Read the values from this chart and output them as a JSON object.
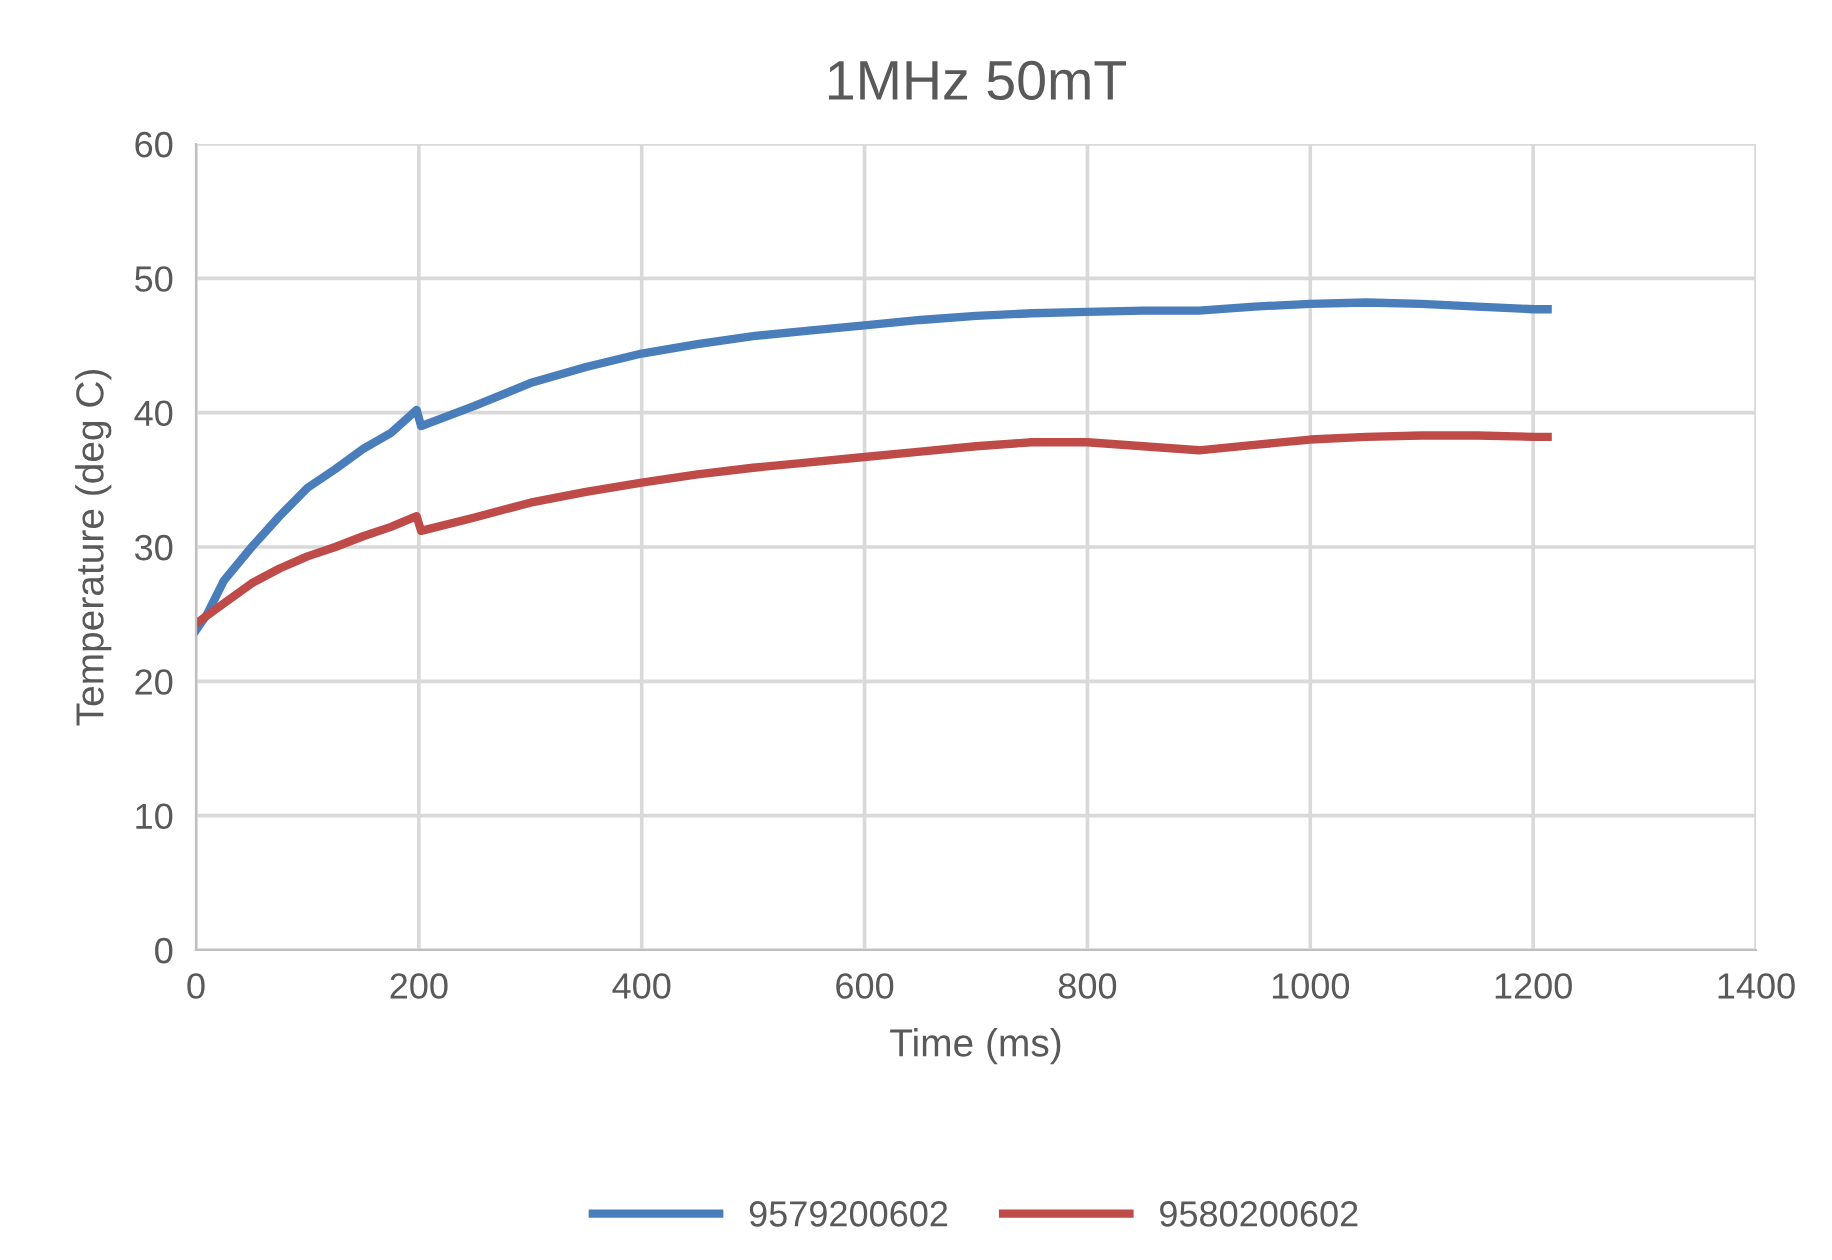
{
  "chart_data": {
    "type": "line",
    "title": "1MHz 50mT",
    "xlabel": "Time (ms)",
    "ylabel": "Temperature (deg C)",
    "xlim": [
      0,
      1400
    ],
    "xticks": [
      0,
      200,
      400,
      600,
      800,
      1000,
      1200,
      1400
    ],
    "ylim": [
      0,
      60
    ],
    "yticks": [
      0,
      10,
      20,
      30,
      40,
      50,
      60
    ],
    "grid": true,
    "legend": "bottom",
    "marker": "none",
    "line_style": "solid",
    "series": [
      {
        "name": "9579200602",
        "color": "#4a7ebb",
        "x": [
          0,
          10,
          25,
          50,
          75,
          100,
          125,
          150,
          175,
          198,
          202,
          250,
          300,
          350,
          400,
          450,
          500,
          550,
          600,
          650,
          700,
          750,
          800,
          850,
          900,
          950,
          1000,
          1050,
          1100,
          1150,
          1200,
          1213
        ],
        "values": [
          23.8,
          25,
          27.5,
          30,
          32.3,
          34.4,
          35.8,
          37.3,
          38.5,
          40.2,
          39,
          40.5,
          42.2,
          43.4,
          44.4,
          45.1,
          45.7,
          46.1,
          46.5,
          46.9,
          47.2,
          47.4,
          47.5,
          47.6,
          47.6,
          47.9,
          48.1,
          48.2,
          48.1,
          47.9,
          47.7,
          47.7
        ]
      },
      {
        "name": "9580200602",
        "color": "#be4b48",
        "x": [
          0,
          25,
          50,
          75,
          100,
          125,
          150,
          175,
          198,
          202,
          250,
          300,
          350,
          400,
          450,
          500,
          550,
          600,
          650,
          700,
          750,
          800,
          850,
          900,
          950,
          1000,
          1050,
          1100,
          1150,
          1200,
          1213
        ],
        "values": [
          24.3,
          25.8,
          27.3,
          28.4,
          29.3,
          30,
          30.8,
          31.5,
          32.3,
          31.2,
          32.2,
          33.3,
          34.1,
          34.8,
          35.4,
          35.9,
          36.3,
          36.7,
          37.1,
          37.5,
          37.8,
          37.8,
          37.5,
          37.2,
          37.6,
          38,
          38.2,
          38.3,
          38.3,
          38.2,
          38.2
        ]
      }
    ]
  }
}
